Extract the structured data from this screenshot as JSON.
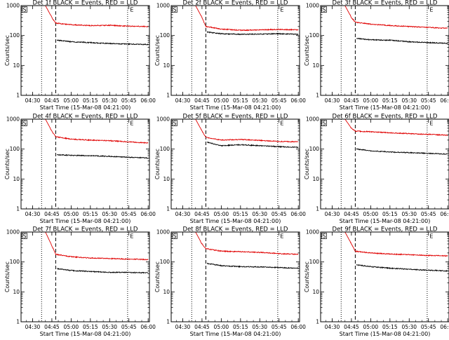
{
  "colors": {
    "events": "#000000",
    "lld": "#e00000",
    "background": "#ffffff"
  },
  "shared": {
    "xlabel": "Start Time (15-Mar-08 04:21:00)",
    "ylabel": "Counts/sec",
    "xticks": [
      "04:30",
      "04:45",
      "05:00",
      "05:15",
      "05:30",
      "05:45",
      "06:00"
    ],
    "yticks": [
      "1",
      "10",
      "100",
      "1000"
    ],
    "start_marker": "S",
    "end_marker": "E"
  },
  "chart_data": [
    {
      "type": "line",
      "title": "Det 1f BLACK = Events, RED = LLD",
      "xlabel": "Start Time (15-Mar-08 04:21:00)",
      "ylabel": "Counts/sec",
      "xlim": [
        "04:21",
        "06:01"
      ],
      "ylim": [
        1,
        1000
      ],
      "yscale": "log",
      "grid": false,
      "vlines": {
        "dotted": [
          "04:37",
          "05:44"
        ],
        "dashed": "04:48"
      },
      "series": [
        {
          "name": "Events",
          "color": "#000000",
          "x": [
            "04:49",
            "05:00",
            "05:15",
            "05:30",
            "05:45",
            "06:00"
          ],
          "values": [
            70,
            62,
            58,
            54,
            52,
            50
          ]
        },
        {
          "name": "LLD",
          "color": "#e00000",
          "x": [
            "04:40",
            "04:45",
            "04:48",
            "05:00",
            "05:15",
            "05:30",
            "05:45",
            "06:00"
          ],
          "values": [
            1000,
            400,
            260,
            230,
            215,
            220,
            205,
            200
          ]
        }
      ]
    },
    {
      "type": "line",
      "title": "Det 2f BLACK = Events, RED = LLD",
      "xlabel": "Start Time (15-Mar-08 04:21:00)",
      "ylabel": "Counts/sec",
      "xlim": [
        "04:21",
        "06:01"
      ],
      "ylim": [
        1,
        1000
      ],
      "yscale": "log",
      "grid": false,
      "vlines": {
        "dotted": [
          "04:37",
          "05:44"
        ],
        "dashed": "04:48"
      },
      "series": [
        {
          "name": "Events",
          "color": "#000000",
          "x": [
            "04:49",
            "05:00",
            "05:15",
            "05:30",
            "05:45",
            "06:00"
          ],
          "values": [
            130,
            115,
            110,
            112,
            115,
            110
          ]
        },
        {
          "name": "LLD",
          "color": "#e00000",
          "x": [
            "04:40",
            "04:45",
            "04:48",
            "05:00",
            "05:15",
            "05:30",
            "05:45",
            "06:00"
          ],
          "values": [
            1000,
            400,
            200,
            165,
            150,
            155,
            160,
            155
          ]
        }
      ]
    },
    {
      "type": "line",
      "title": "Det 3f BLACK = Events, RED = LLD",
      "xlabel": "Start Time (15-Mar-08 04:21:00)",
      "ylabel": "Counts/sec",
      "xlim": [
        "04:21",
        "06:01"
      ],
      "ylim": [
        1,
        1000
      ],
      "yscale": "log",
      "grid": false,
      "vlines": {
        "dotted": [
          "04:37",
          "05:44"
        ],
        "dashed": "04:48"
      },
      "series": [
        {
          "name": "Events",
          "color": "#000000",
          "x": [
            "04:49",
            "05:00",
            "05:15",
            "05:30",
            "05:45",
            "06:00"
          ],
          "values": [
            80,
            72,
            70,
            62,
            58,
            55
          ]
        },
        {
          "name": "LLD",
          "color": "#e00000",
          "x": [
            "04:40",
            "04:45",
            "04:48",
            "05:00",
            "05:15",
            "05:30",
            "05:45",
            "06:00"
          ],
          "values": [
            1000,
            400,
            280,
            240,
            215,
            200,
            185,
            175
          ]
        }
      ]
    },
    {
      "type": "line",
      "title": "Det 4f BLACK = Events, RED = LLD",
      "xlabel": "Start Time (15-Mar-08 04:21:00)",
      "ylabel": "Counts/sec",
      "xlim": [
        "04:21",
        "06:01"
      ],
      "ylim": [
        1,
        1000
      ],
      "yscale": "log",
      "grid": false,
      "vlines": {
        "dotted": [
          "04:37",
          "05:44"
        ],
        "dashed": "04:48"
      },
      "series": [
        {
          "name": "Events",
          "color": "#000000",
          "x": [
            "04:49",
            "05:00",
            "05:15",
            "05:30",
            "05:45",
            "06:00"
          ],
          "values": [
            65,
            62,
            60,
            57,
            53,
            50
          ]
        },
        {
          "name": "LLD",
          "color": "#e00000",
          "x": [
            "04:40",
            "04:45",
            "04:48",
            "05:00",
            "05:15",
            "05:30",
            "05:45",
            "06:00"
          ],
          "values": [
            1000,
            400,
            260,
            215,
            200,
            190,
            175,
            160
          ]
        }
      ]
    },
    {
      "type": "line",
      "title": "Det 5f BLACK = Events, RED = LLD",
      "xlabel": "Start Time (15-Mar-08 04:21:00)",
      "ylabel": "Counts/sec",
      "xlim": [
        "04:21",
        "06:01"
      ],
      "ylim": [
        1,
        1000
      ],
      "yscale": "log",
      "grid": false,
      "vlines": {
        "dotted": [
          "04:37",
          "05:44"
        ],
        "dashed": "04:48"
      },
      "series": [
        {
          "name": "Events",
          "color": "#000000",
          "x": [
            "04:49",
            "05:00",
            "05:15",
            "05:30",
            "05:45",
            "06:00"
          ],
          "values": [
            170,
            130,
            140,
            130,
            120,
            115
          ]
        },
        {
          "name": "LLD",
          "color": "#e00000",
          "x": [
            "04:40",
            "04:45",
            "04:48",
            "05:00",
            "05:15",
            "05:30",
            "05:45",
            "06:00"
          ],
          "values": [
            1000,
            400,
            250,
            200,
            210,
            195,
            180,
            175
          ]
        }
      ]
    },
    {
      "type": "line",
      "title": "Det 6f BLACK = Events, RED = LLD",
      "xlabel": "Start Time (15-Mar-08 04:21:00)",
      "ylabel": "Counts/sec",
      "xlim": [
        "04:21",
        "06:01"
      ],
      "ylim": [
        1,
        1000
      ],
      "yscale": "log",
      "grid": false,
      "vlines": {
        "dotted": [
          "04:37",
          "05:44"
        ],
        "dashed": "04:48"
      },
      "series": [
        {
          "name": "Events",
          "color": "#000000",
          "x": [
            "04:49",
            "05:00",
            "05:15",
            "05:30",
            "05:45",
            "06:00"
          ],
          "values": [
            100,
            88,
            80,
            76,
            72,
            68
          ]
        },
        {
          "name": "LLD",
          "color": "#e00000",
          "x": [
            "04:40",
            "04:45",
            "04:48",
            "05:00",
            "05:15",
            "05:30",
            "05:45",
            "06:00"
          ],
          "values": [
            1000,
            500,
            400,
            380,
            350,
            330,
            310,
            290
          ]
        }
      ]
    },
    {
      "type": "line",
      "title": "Det 7f BLACK = Events, RED = LLD",
      "xlabel": "Start Time (15-Mar-08 04:21:00)",
      "ylabel": "Counts/sec",
      "xlim": [
        "04:21",
        "06:01"
      ],
      "ylim": [
        1,
        1000
      ],
      "yscale": "log",
      "grid": false,
      "vlines": {
        "dotted": [
          "04:37",
          "05:44"
        ],
        "dashed": "04:48"
      },
      "series": [
        {
          "name": "Events",
          "color": "#000000",
          "x": [
            "04:49",
            "05:00",
            "05:15",
            "05:30",
            "05:45",
            "06:00"
          ],
          "values": [
            60,
            52,
            48,
            45,
            45,
            43
          ]
        },
        {
          "name": "LLD",
          "color": "#e00000",
          "x": [
            "04:40",
            "04:45",
            "04:48",
            "05:00",
            "05:15",
            "05:30",
            "05:45",
            "06:00"
          ],
          "values": [
            1000,
            350,
            180,
            150,
            135,
            130,
            125,
            120
          ]
        }
      ]
    },
    {
      "type": "line",
      "title": "Det 8f BLACK = Events, RED = LLD",
      "xlabel": "Start Time (15-Mar-08 04:21:00)",
      "ylabel": "Counts/sec",
      "xlim": [
        "04:21",
        "06:01"
      ],
      "ylim": [
        1,
        1000
      ],
      "yscale": "log",
      "grid": false,
      "vlines": {
        "dotted": [
          "04:37",
          "05:44"
        ],
        "dashed": "04:48"
      },
      "series": [
        {
          "name": "Events",
          "color": "#000000",
          "x": [
            "04:49",
            "05:00",
            "05:15",
            "05:30",
            "05:45",
            "06:00"
          ],
          "values": [
            90,
            75,
            70,
            68,
            65,
            62
          ]
        },
        {
          "name": "LLD",
          "color": "#e00000",
          "x": [
            "04:40",
            "04:45",
            "04:48",
            "05:00",
            "05:15",
            "05:30",
            "05:45",
            "06:00"
          ],
          "values": [
            1000,
            400,
            280,
            230,
            220,
            210,
            190,
            180
          ]
        }
      ]
    },
    {
      "type": "line",
      "title": "Det 9f BLACK = Events, RED = LLD",
      "xlabel": "Start Time (15-Mar-08 04:21:00)",
      "ylabel": "Counts/sec",
      "xlim": [
        "04:21",
        "06:01"
      ],
      "ylim": [
        1,
        1000
      ],
      "yscale": "log",
      "grid": false,
      "vlines": {
        "dotted": [
          "04:37",
          "05:44"
        ],
        "dashed": "04:48"
      },
      "series": [
        {
          "name": "Events",
          "color": "#000000",
          "x": [
            "04:49",
            "05:00",
            "05:15",
            "05:30",
            "05:45",
            "06:00"
          ],
          "values": [
            80,
            70,
            62,
            57,
            53,
            50
          ]
        },
        {
          "name": "LLD",
          "color": "#e00000",
          "x": [
            "04:40",
            "04:45",
            "04:48",
            "05:00",
            "05:15",
            "05:30",
            "05:45",
            "06:00"
          ],
          "values": [
            1000,
            400,
            230,
            200,
            185,
            175,
            165,
            160
          ]
        }
      ]
    }
  ]
}
